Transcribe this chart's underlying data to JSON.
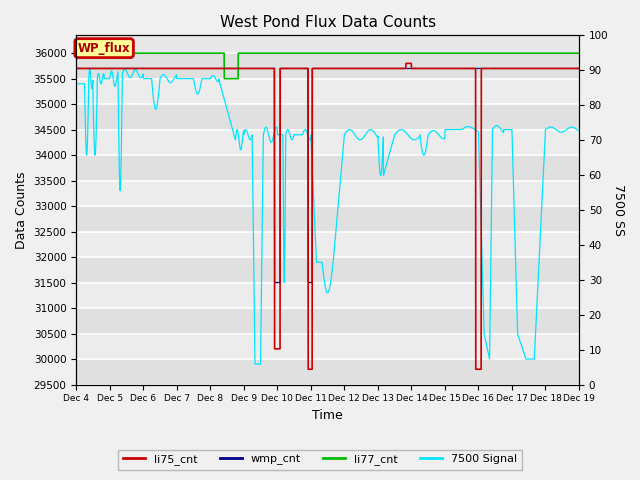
{
  "title": "West Pond Flux Data Counts",
  "xlabel": "Time",
  "ylabel": "Data Counts",
  "ylabel_right": "7500 SS",
  "annotation_text": "WP_flux",
  "ylim_left": [
    29500,
    36350
  ],
  "ylim_right": [
    0,
    100
  ],
  "xtick_labels": [
    "Dec 4",
    "Dec 5",
    "Dec 6",
    "Dec 7",
    "Dec 8",
    "Dec 9",
    "Dec 10",
    "Dec 11",
    "Dec 12",
    "Dec 13",
    "Dec 14",
    "Dec 15",
    "Dec 16",
    "Dec 17",
    "Dec 18",
    "Dec 19"
  ],
  "background_color": "#f0f0f0",
  "plot_bg_color": "#e8e8e8",
  "li77_color": "#00bb00",
  "li75_color": "#cc0000",
  "wmp_color": "#000088",
  "signal7500_color": "#00e5ff",
  "legend_labels": [
    "li75_cnt",
    "wmp_cnt",
    "li77_cnt",
    "7500 Signal"
  ],
  "legend_colors": [
    "#cc0000",
    "#000088",
    "#00bb00",
    "#00e5ff"
  ],
  "yticks_left": [
    29500,
    30000,
    30500,
    31000,
    31500,
    32000,
    32500,
    33000,
    33500,
    34000,
    34500,
    35000,
    35500,
    36000
  ],
  "yticks_right": [
    0,
    10,
    20,
    30,
    40,
    50,
    60,
    70,
    80,
    90,
    100
  ]
}
